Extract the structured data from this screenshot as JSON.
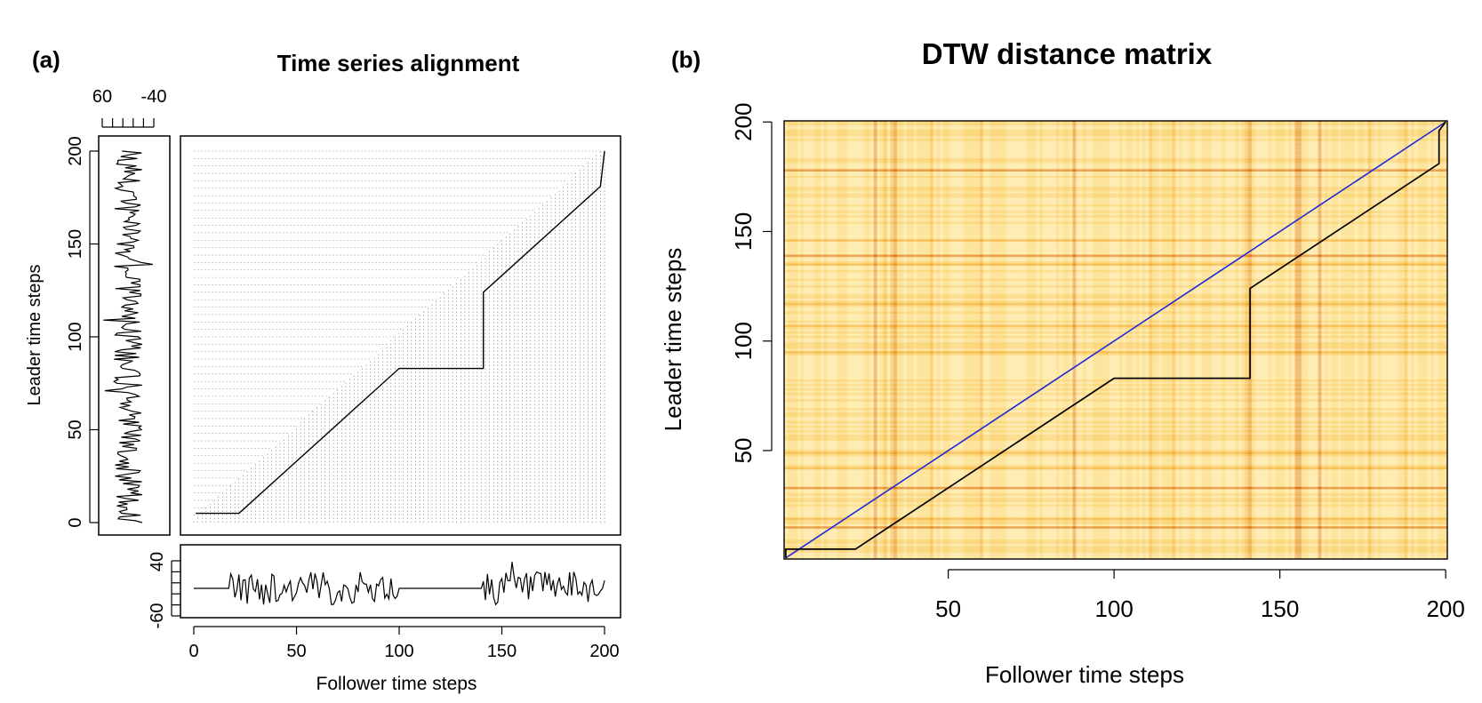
{
  "panels": {
    "a": {
      "label": "(a)",
      "title": "Time series alignment",
      "xlabel": "Follower time steps",
      "ylabel": "Leader time steps",
      "x_ticks": [
        "0",
        "50",
        "100",
        "150",
        "200"
      ],
      "y_ticks": [
        "0",
        "50",
        "100",
        "150",
        "200"
      ],
      "leader_value_ticks": [
        "60",
        "-40"
      ],
      "follower_value_ticks": [
        "40",
        "-60"
      ]
    },
    "b": {
      "label": "(b)",
      "title": "DTW distance matrix",
      "xlabel": "Follower time steps",
      "ylabel": "Leader time steps",
      "x_ticks": [
        "50",
        "100",
        "150",
        "200"
      ],
      "y_ticks": [
        "50",
        "100",
        "150",
        "200"
      ]
    }
  },
  "chart_data": [
    {
      "type": "line",
      "title": "Time series alignment",
      "xlabel": "Follower time steps",
      "ylabel": "Leader time steps",
      "xlim": [
        0,
        200
      ],
      "ylim": [
        0,
        200
      ],
      "alignment_path": {
        "x": [
          1,
          22,
          100,
          141,
          141,
          198,
          200
        ],
        "y": [
          5,
          5,
          83,
          83,
          124,
          181,
          200
        ]
      },
      "leader_series_range": [
        -40,
        60
      ],
      "follower_series_range": [
        -60,
        40
      ],
      "follower_flat_segments": [
        [
          0,
          17
        ],
        [
          100,
          140
        ]
      ],
      "follower_flat_value": -10
    },
    {
      "type": "heatmap",
      "title": "DTW distance matrix",
      "xlabel": "Follower time steps",
      "ylabel": "Leader time steps",
      "xlim": [
        1,
        200
      ],
      "ylim": [
        1,
        200
      ],
      "colormap": "heat",
      "colors": {
        "low": "#fff3c4",
        "mid": "#fbd77e",
        "high": "#f3a324",
        "max": "#d45a00",
        "diagonal": "#1f2bd6",
        "path": "#000000"
      },
      "strong_columns": [
        28,
        34,
        88,
        141,
        155,
        156,
        162
      ],
      "strong_rows": [
        15,
        33,
        139,
        178
      ],
      "diagonal": {
        "x": [
          1,
          200
        ],
        "y": [
          1,
          200
        ]
      },
      "warping_path": {
        "x": [
          1,
          1,
          22,
          100,
          141,
          141,
          198,
          198,
          200
        ],
        "y": [
          1,
          5,
          5,
          83,
          83,
          124,
          181,
          196,
          200
        ]
      }
    }
  ]
}
